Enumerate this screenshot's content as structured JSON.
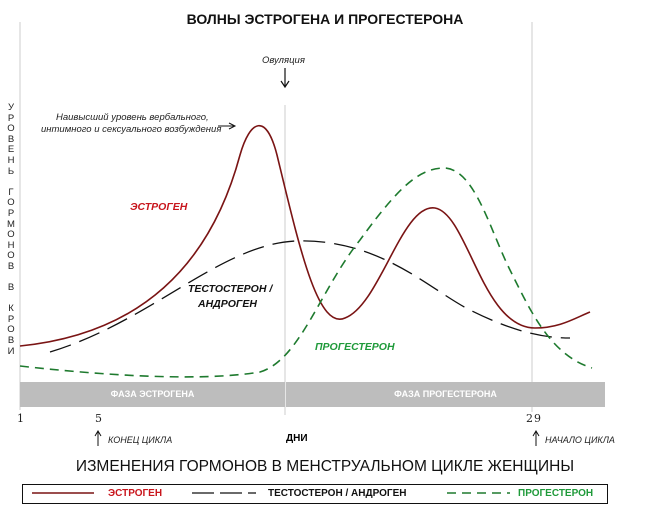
{
  "title": "ВОЛНЫ ЭСТРОГЕНА И ПРОГЕСТЕРОНА",
  "subtitle": "ИЗМЕНЕНИЯ ГОРМОНОВ В МЕНСТРУАЛЬНОМ ЦИКЛЕ ЖЕНЩИНЫ",
  "y_axis_label": "У\nР\nО\nВ\nЕ\nН\nЬ\n \nГ\nО\nР\nМ\nО\nН\nО\nВ\n \nВ\n \nК\nР\nО\nВ\nИ",
  "x_axis_label": "ДНИ",
  "annotations": {
    "ovulation": "Овуляция",
    "peak_line1": "Наивысший уровень вербального,",
    "peak_line2": "интимного и сексуального возбуждения",
    "cycle_end": "КОНЕЦ ЦИКЛА",
    "cycle_start": "НАЧАЛО ЦИКЛА"
  },
  "curve_labels": {
    "estrogen": "ЭСТРОГЕН",
    "testosterone_line1": "ТЕСТОСТЕРОН /",
    "testosterone_line2": "АНДРОГЕН",
    "progesterone": "ПРОГЕСТЕРОН"
  },
  "phases": [
    "ФАЗА ЭСТРОГЕНА",
    "ФАЗА ПРОГЕСТЕРОНА"
  ],
  "ticks": [
    "1",
    "5",
    "29"
  ],
  "legend": {
    "estrogen": "ЭСТРОГЕН",
    "testosterone": "ТЕСТОСТЕРОН / АНДРОГЕН",
    "progesterone": "ПРОГЕСТЕРОН"
  },
  "colors": {
    "estrogen": "#7a1414",
    "estrogen_text": "#c8161d",
    "testosterone": "#111111",
    "progesterone": "#1e7a2e",
    "progesterone_text": "#1f9a3a",
    "phase_bar": "#bdbdbd"
  }
}
